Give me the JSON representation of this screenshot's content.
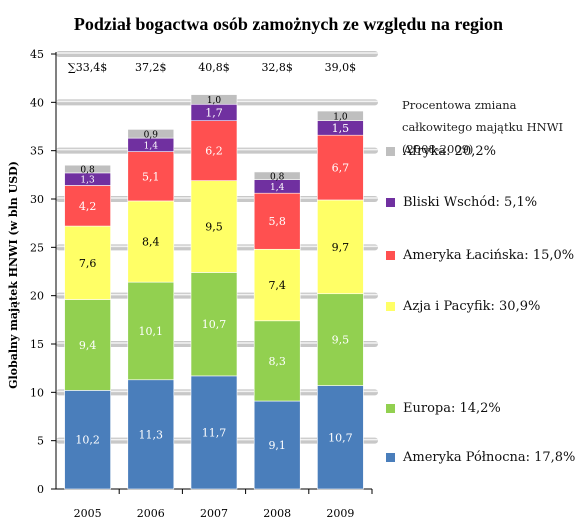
{
  "chart_data": {
    "type": "bar",
    "stacked": true,
    "title": "Podział bogactwa osób zamożnych ze względu na region",
    "ylabel": "Globalny majątek HNWI (w bln USD)",
    "xlabel": "",
    "ylim": [
      0,
      45
    ],
    "yticks": [
      "0",
      "5",
      "10",
      "15",
      "20",
      "25",
      "30",
      "35",
      "40",
      "45"
    ],
    "grid": true,
    "categories": [
      "2005",
      "2006",
      "2007",
      "2008",
      "2009"
    ],
    "totals": [
      "∑33,4$",
      "37,2$",
      "40,8$",
      "32,8$",
      "39,0$"
    ],
    "series": [
      {
        "name": "Ameryka Północna",
        "legend": "Ameryka Północna: 17,8%",
        "color": "#4a7ebb",
        "values": [
          10.2,
          11.3,
          11.7,
          9.1,
          10.7
        ],
        "labels": [
          "10,2",
          "11,3",
          "11,7",
          "9,1",
          "10,7"
        ],
        "label_color": "#ffffff"
      },
      {
        "name": "Europa",
        "legend": "Europa: 14,2%",
        "color": "#92d050",
        "values": [
          9.4,
          10.1,
          10.7,
          8.3,
          9.5
        ],
        "labels": [
          "9,4",
          "10,1",
          "10,7",
          "8,3",
          "9,5"
        ],
        "label_color": "#ffffff"
      },
      {
        "name": "Azja i Pacyfik",
        "legend": "Azja i Pacyfik: 30,9%",
        "color": "#ffff66",
        "values": [
          7.6,
          8.4,
          9.5,
          7.4,
          9.7
        ],
        "labels": [
          "7,6",
          "8,4",
          "9,5",
          "7,4",
          "9,7"
        ],
        "label_color": "#000000"
      },
      {
        "name": "Ameryka Łacińska",
        "legend": "Ameryka Łacińska: 15,0%",
        "color": "#ff5050",
        "values": [
          4.2,
          5.1,
          6.2,
          5.8,
          6.7
        ],
        "labels": [
          "4,2",
          "5,1",
          "6,2",
          "5,8",
          "6,7"
        ],
        "label_color": "#ffffff"
      },
      {
        "name": "Bliski Wschód",
        "legend": "Bliski Wschód: 5,1%",
        "color": "#7030a0",
        "values": [
          1.3,
          1.4,
          1.7,
          1.4,
          1.5
        ],
        "labels": [
          "1,3",
          "1,4",
          "1,7",
          "1,4",
          "1,5"
        ],
        "label_color": "#ffffff"
      },
      {
        "name": "Afryka",
        "legend": "Afryka: 20,2%",
        "color": "#bfbfbf",
        "values": [
          0.8,
          0.9,
          1.0,
          0.8,
          1.0
        ],
        "labels": [
          "0,8",
          "0,9",
          "1,0",
          "0,8",
          "1,0"
        ],
        "label_color": "#000000"
      }
    ],
    "legend_title": "Procentowa zmiana całkowitego majątku HNWI (2008-2009)",
    "legend_position": "right"
  }
}
